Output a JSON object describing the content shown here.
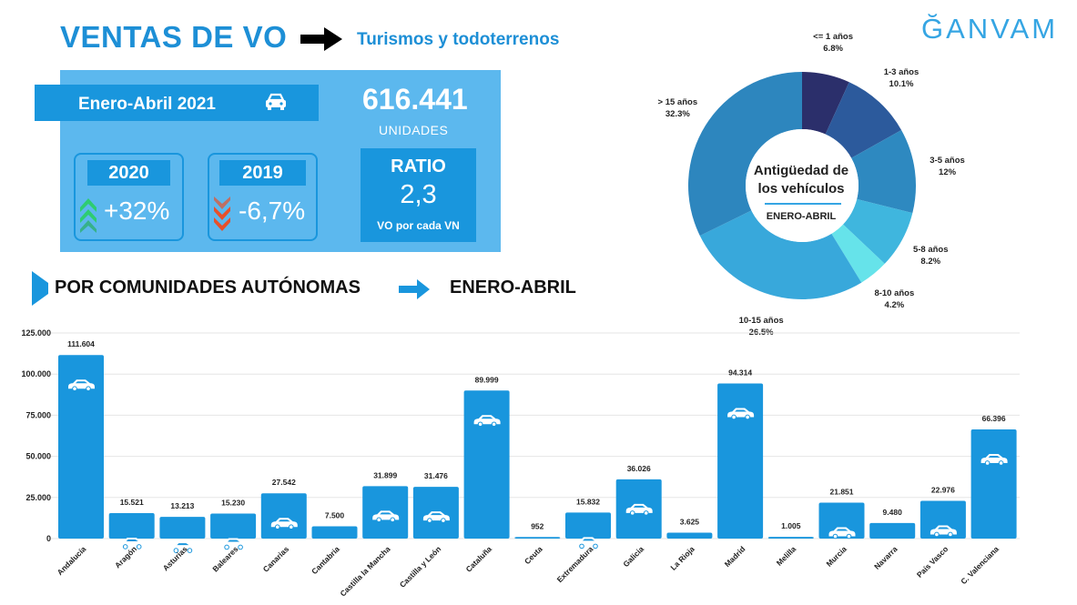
{
  "header": {
    "title": "VENTAS DE VO",
    "subtitle": "Turismos y todoterrenos",
    "logo": "ĞANVAM"
  },
  "summary": {
    "period": "Enero-Abril 2021",
    "units_value": "616.441",
    "units_label": "UNIDADES",
    "comparisons": [
      {
        "year": "2020",
        "change": "+32%",
        "direction": "up"
      },
      {
        "year": "2019",
        "change": "-6,7%",
        "direction": "down"
      }
    ],
    "ratio": {
      "label": "RATIO",
      "value": "2,3",
      "caption": "VO por cada VN"
    }
  },
  "section": {
    "heading": "POR COMUNIDADES AUTÓNOMAS",
    "period": "ENERO-ABRIL"
  },
  "colors": {
    "brand_blue": "#1996dd",
    "panel_blue": "#5cb8ee",
    "up_green": "#2ecc71",
    "down_red": "#e8502a"
  },
  "chart_data": [
    {
      "type": "pie",
      "title": "Antigüedad de los vehículos",
      "subtitle": "ENERO-ABRIL",
      "slices": [
        {
          "label": "<= 1 años",
          "value": 6.8,
          "text": "6.8%",
          "color": "#2b2f6b"
        },
        {
          "label": "1-3 años",
          "value": 10.1,
          "text": "10.1%",
          "color": "#2c5a9c"
        },
        {
          "label": "3-5 años",
          "value": 12,
          "text": "12%",
          "color": "#2e89c0"
        },
        {
          "label": "5-8 años",
          "value": 8.2,
          "text": "8.2%",
          "color": "#3fb6de"
        },
        {
          "label": "8-10 años",
          "value": 4.2,
          "text": "4.2%",
          "color": "#66e3ea"
        },
        {
          "label": "10-15 años",
          "value": 26.5,
          "text": "26.5%",
          "color": "#38a8db"
        },
        {
          "label": "> 15 años",
          "value": 32.3,
          "text": "32.3%",
          "color": "#2d86be"
        }
      ]
    },
    {
      "type": "bar",
      "categories": [
        "Andalucía",
        "Aragón",
        "Asturias",
        "Baleares",
        "Canarias",
        "Cantabria",
        "Castilla la Mancha",
        "Castilla y León",
        "Cataluña",
        "Ceuta",
        "Extremadura",
        "Galicia",
        "La Rioja",
        "Madrid",
        "Melilla",
        "Murcia",
        "Navarra",
        "País Vasco",
        "C. Valenciana"
      ],
      "values": [
        111604,
        15521,
        13213,
        15230,
        27542,
        7500,
        31899,
        31476,
        89999,
        952,
        15832,
        36026,
        3625,
        94314,
        1005,
        21851,
        9480,
        22976,
        66396
      ],
      "value_labels": [
        "111.604",
        "15.521",
        "13.213",
        "15.230",
        "27.542",
        "7.500",
        "31.899",
        "31.476",
        "89.999",
        "952",
        "15.832",
        "36.026",
        "3.625",
        "94.314",
        "1.005",
        "21.851",
        "9.480",
        "22.976",
        "66.396"
      ],
      "car_icon": [
        true,
        true,
        true,
        true,
        true,
        false,
        true,
        true,
        true,
        false,
        true,
        true,
        false,
        true,
        false,
        true,
        false,
        true,
        true
      ],
      "yticks": [
        0,
        25000,
        50000,
        75000,
        100000,
        125000
      ],
      "ytick_labels": [
        "0",
        "25.000",
        "50.000",
        "75.000",
        "100.000",
        "125.000"
      ],
      "ylim": [
        0,
        125000
      ],
      "grid": true,
      "color": "#1996dd"
    }
  ]
}
